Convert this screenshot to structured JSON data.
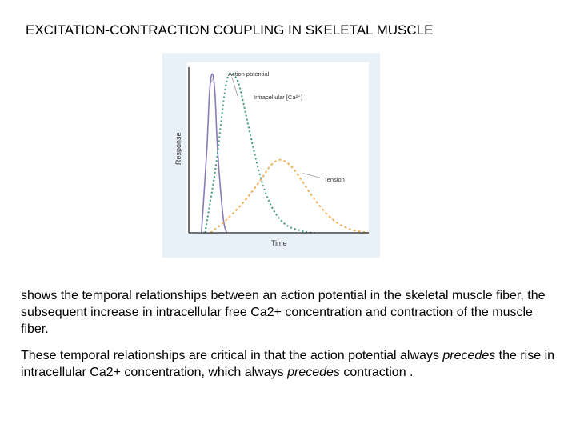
{
  "slide": {
    "title": "EXCITATION-CONTRACTION COUPLING IN SKELETAL MUSCLE",
    "paragraph1": "shows the temporal relationships between an action potential in the skeletal muscle fiber, the subsequent increase in intracellular free Ca2+ concentration and contraction of the muscle fiber.",
    "paragraph2": {
      "part1": " These temporal relationships are critical in that the action potential always ",
      "em1": "precedes",
      "part2": " the rise in intracellular Ca2+ concentration, which always ",
      "em2": "precedes",
      "part3": " contraction ."
    }
  },
  "colors": {
    "action_potential": "#8c7ab8",
    "intracellular_ca": "#3f9a82",
    "tension": "#f0b15a",
    "axis": "#222222",
    "figure_bg": "#e8f0f8",
    "plot_bg": "#ffffff"
  },
  "chart_data": {
    "type": "line",
    "title": "",
    "xlabel": "Time",
    "ylabel": "Response",
    "grid": false,
    "xlim": [
      0,
      100
    ],
    "ylim": [
      0,
      100
    ],
    "series": [
      {
        "name": "Action potential",
        "style": "solid",
        "x": [
          7,
          10,
          11.5,
          13,
          14.5,
          16,
          19,
          21
        ],
        "y": [
          0,
          50,
          85,
          96,
          85,
          50,
          10,
          0
        ]
      },
      {
        "name": "Intracellular [Ca²⁺]",
        "style": "dashed",
        "x": [
          9,
          15,
          20,
          23,
          27,
          30,
          35,
          40,
          45,
          50,
          55,
          60,
          65,
          70
        ],
        "y": [
          0,
          40,
          85,
          96,
          92,
          80,
          55,
          33,
          18,
          9,
          4,
          2,
          0.5,
          0
        ]
      },
      {
        "name": "Tension",
        "style": "dashed",
        "x": [
          12,
          20,
          30,
          40,
          45,
          50,
          55,
          60,
          70,
          80,
          90,
          100
        ],
        "y": [
          0,
          7,
          18,
          32,
          40,
          44,
          42,
          36,
          20,
          8,
          2,
          0
        ]
      }
    ]
  }
}
